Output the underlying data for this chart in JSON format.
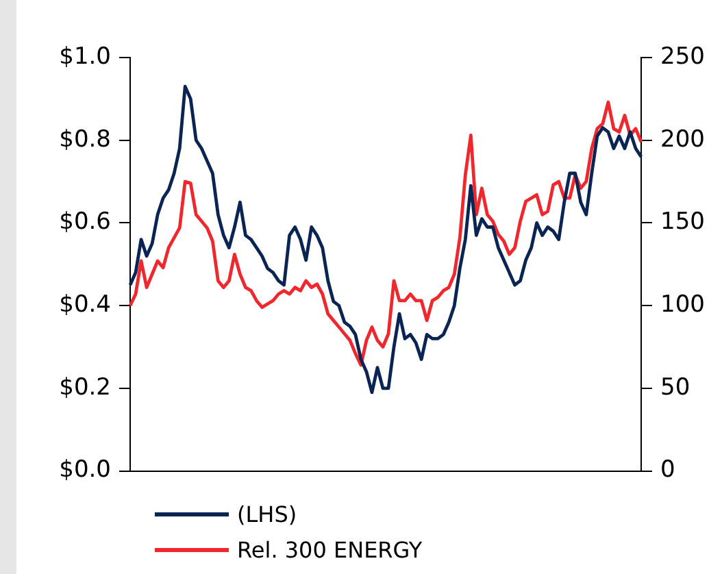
{
  "chart_data": {
    "type": "line",
    "categories": [
      null,
      null,
      null,
      null,
      null,
      null,
      null,
      null,
      null,
      null,
      null,
      null,
      null,
      null,
      null,
      null,
      null,
      null,
      null,
      null,
      null,
      null,
      null,
      null,
      null,
      null,
      null,
      null,
      null,
      null,
      null,
      null,
      null,
      null,
      null,
      null,
      null,
      null,
      null,
      null,
      null,
      null,
      null,
      null,
      null,
      null,
      null,
      null,
      null,
      null,
      null,
      null,
      null,
      null,
      null,
      null,
      null,
      null,
      null,
      null,
      null,
      null,
      null,
      null,
      null,
      null,
      null,
      null,
      null,
      null,
      null,
      null,
      null,
      null,
      null,
      null,
      null,
      null,
      null,
      null,
      null,
      null,
      null,
      null,
      null,
      null,
      null,
      null,
      null,
      null,
      null,
      null,
      null,
      null
    ],
    "series": [
      {
        "name": "(LHS)",
        "color": "#0a2553",
        "values": [
          0.45,
          0.48,
          0.56,
          0.52,
          0.55,
          0.62,
          0.66,
          0.68,
          0.72,
          0.78,
          0.93,
          0.9,
          0.8,
          0.78,
          0.75,
          0.72,
          0.62,
          0.57,
          0.54,
          0.59,
          0.65,
          0.57,
          0.56,
          0.54,
          0.52,
          0.49,
          0.48,
          0.46,
          0.45,
          0.57,
          0.59,
          0.56,
          0.51,
          0.59,
          0.57,
          0.54,
          0.46,
          0.41,
          0.4,
          0.36,
          0.35,
          0.33,
          0.27,
          0.24,
          0.19,
          0.25,
          0.2,
          0.2,
          0.3,
          0.38,
          0.32,
          0.33,
          0.31,
          0.27,
          0.33,
          0.32,
          0.32,
          0.33,
          0.36,
          0.4,
          0.49,
          0.56,
          0.69,
          0.57,
          0.61,
          0.59,
          0.59,
          0.54,
          0.51,
          0.48,
          0.45,
          0.46,
          0.51,
          0.54,
          0.6,
          0.57,
          0.59,
          0.58,
          0.56,
          0.65,
          0.72,
          0.72,
          0.65,
          0.62,
          0.72,
          0.81,
          0.83,
          0.82,
          0.78,
          0.81,
          0.78,
          0.82,
          0.78,
          0.76
        ]
      },
      {
        "name": "Rel. 300 ENERGY",
        "color": "#f0282d",
        "axis": "y2",
        "values": [
          100,
          107,
          127,
          111,
          119,
          127,
          123,
          135,
          141,
          147,
          175,
          174,
          155,
          151,
          147,
          139,
          115,
          111,
          115,
          131,
          119,
          111,
          109,
          103,
          99,
          101,
          103,
          107,
          109,
          107,
          111,
          109,
          115,
          111,
          113,
          107,
          95,
          91,
          87,
          83,
          79,
          71,
          64,
          79,
          87,
          79,
          75,
          83,
          115,
          103,
          103,
          107,
          103,
          103,
          91,
          103,
          105,
          109,
          111,
          119,
          141,
          179,
          203,
          155,
          171,
          155,
          151,
          143,
          139,
          131,
          135,
          151,
          163,
          165,
          167,
          155,
          157,
          173,
          175,
          165,
          165,
          179,
          171,
          175,
          195,
          207,
          210,
          223,
          207,
          205,
          215,
          203,
          207,
          199
        ]
      }
    ],
    "ylim": [
      0,
      1
    ],
    "yticks": [
      {
        "value": 0,
        "label": "$0.0"
      },
      {
        "value": 0.2,
        "label": "$0.2"
      },
      {
        "value": 0.4,
        "label": "$0.4"
      },
      {
        "value": 0.6,
        "label": "$0.6"
      },
      {
        "value": 0.8,
        "label": "$0.8"
      },
      {
        "value": 1,
        "label": "$1.0"
      }
    ],
    "y2lim": [
      0,
      250
    ],
    "y2ticks": [
      0,
      50,
      100,
      150,
      200,
      250
    ],
    "tick_labels": "y",
    "grid": false,
    "legend": "bottom",
    "marker": "none",
    "line_style": "solid"
  }
}
